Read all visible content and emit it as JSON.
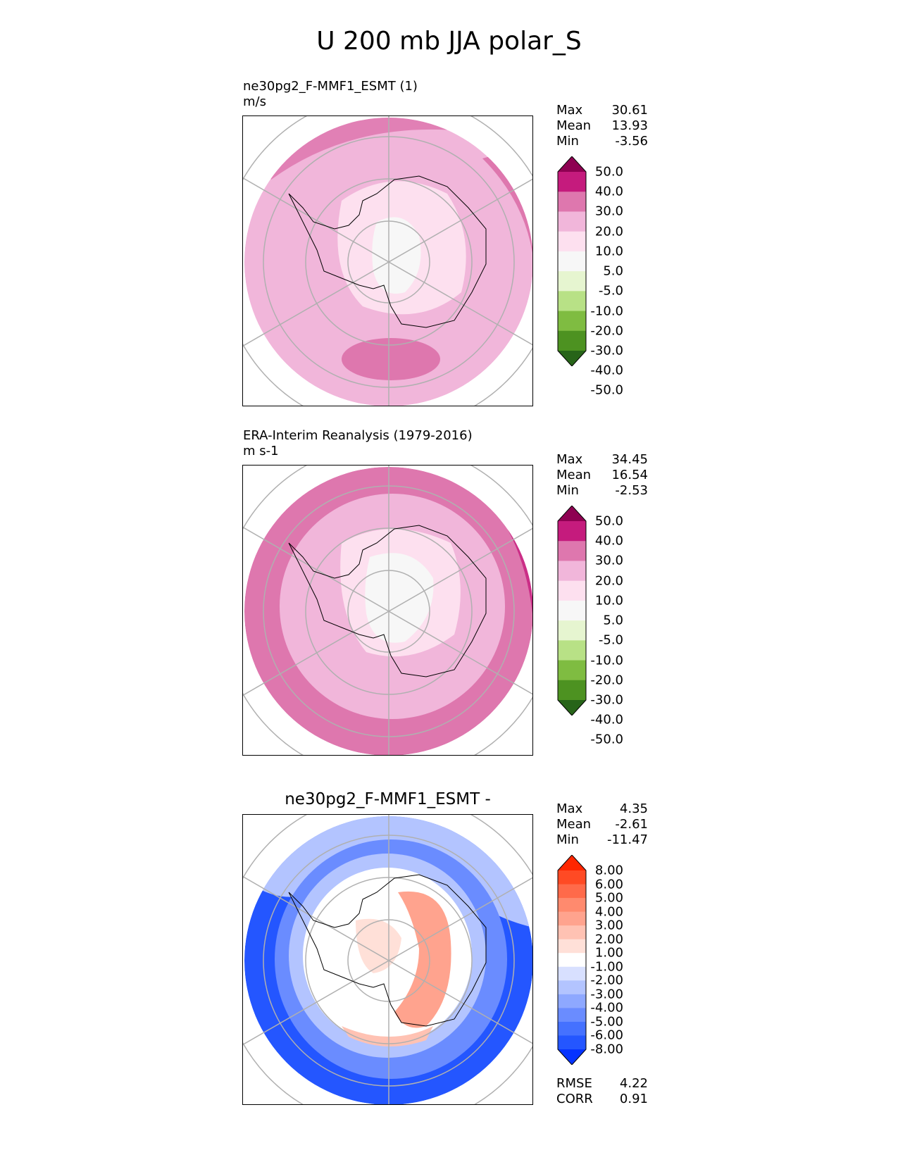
{
  "figure": {
    "title": "U 200 mb JJA polar_S"
  },
  "panels": [
    {
      "label_line1": "ne30pg2_F-MMF1_ESMT (1)",
      "label_line2": "m/s",
      "stats": {
        "max_label": "Max",
        "max": "30.61",
        "mean_label": "Mean",
        "mean": "13.93",
        "min_label": "Min",
        "min": "-3.56"
      },
      "colorbar": {
        "colors": [
          "#276419",
          "#4d9221",
          "#7fbc41",
          "#b8e186",
          "#e6f5d0",
          "#f7f7f7",
          "#fde0ef",
          "#f1b6da",
          "#de77ae",
          "#c51b7d",
          "#8e0152"
        ],
        "ticks": [
          "-50.0",
          "-40.0",
          "-30.0",
          "-20.0",
          "-10.0",
          "-5.0",
          "5.0",
          "10.0",
          "20.0",
          "30.0",
          "40.0",
          "50.0"
        ]
      }
    },
    {
      "label_line1": "ERA-Interim Reanalysis (1979-2016)",
      "label_line2": "m s-1",
      "stats": {
        "max_label": "Max",
        "max": "34.45",
        "mean_label": "Mean",
        "mean": "16.54",
        "min_label": "Min",
        "min": "-2.53"
      },
      "colorbar": {
        "colors": [
          "#276419",
          "#4d9221",
          "#7fbc41",
          "#b8e186",
          "#e6f5d0",
          "#f7f7f7",
          "#fde0ef",
          "#f1b6da",
          "#de77ae",
          "#c51b7d",
          "#8e0152"
        ],
        "ticks": [
          "-50.0",
          "-40.0",
          "-30.0",
          "-20.0",
          "-10.0",
          "-5.0",
          "5.0",
          "10.0",
          "20.0",
          "30.0",
          "40.0",
          "50.0"
        ]
      }
    },
    {
      "title": "ne30pg2_F-MMF1_ESMT -",
      "stats": {
        "max_label": "Max",
        "max": "4.35",
        "mean_label": "Mean",
        "mean": "-2.61",
        "min_label": "Min",
        "min": "-11.47"
      },
      "colorbar": {
        "colors": [
          "#0533ff",
          "#2456ff",
          "#4571ff",
          "#6a8cff",
          "#8ea8ff",
          "#b3c4ff",
          "#d8e0ff",
          "#ffffff",
          "#ffe0d8",
          "#ffc2b3",
          "#ffa38e",
          "#ff8a6e",
          "#ff6a4a",
          "#ff4a24",
          "#ff2600"
        ],
        "ticks": [
          "-8.00",
          "-6.00",
          "-5.00",
          "-4.00",
          "-3.00",
          "-2.00",
          "-1.00",
          "1.00",
          "2.00",
          "3.00",
          "4.00",
          "5.00",
          "6.00",
          "8.00"
        ]
      },
      "metrics": {
        "rmse_label": "RMSE",
        "rmse": "4.22",
        "corr_label": "CORR",
        "corr": "0.91"
      }
    }
  ],
  "chart_data": [
    {
      "type": "heatmap",
      "projection": "south polar stereographic",
      "variable": "U 200 mb JJA",
      "title": "ne30pg2_F-MMF1_ESMT (1)",
      "units": "m/s",
      "stats": {
        "max": 30.61,
        "mean": 13.93,
        "min": -3.56
      },
      "levels": [
        -50,
        -40,
        -30,
        -20,
        -10,
        -5,
        5,
        10,
        20,
        30,
        40,
        50
      ]
    },
    {
      "type": "heatmap",
      "projection": "south polar stereographic",
      "variable": "U 200 mb JJA",
      "title": "ERA-Interim Reanalysis (1979-2016)",
      "units": "m s-1",
      "stats": {
        "max": 34.45,
        "mean": 16.54,
        "min": -2.53
      },
      "levels": [
        -50,
        -40,
        -30,
        -20,
        -10,
        -5,
        5,
        10,
        20,
        30,
        40,
        50
      ]
    },
    {
      "type": "heatmap",
      "projection": "south polar stereographic",
      "title": "ne30pg2_F-MMF1_ESMT -",
      "stats": {
        "max": 4.35,
        "mean": -2.61,
        "min": -11.47,
        "rmse": 4.22,
        "corr": 0.91
      },
      "levels": [
        -8,
        -6,
        -5,
        -4,
        -3,
        -2,
        -1,
        1,
        2,
        3,
        4,
        5,
        6,
        8
      ]
    }
  ]
}
